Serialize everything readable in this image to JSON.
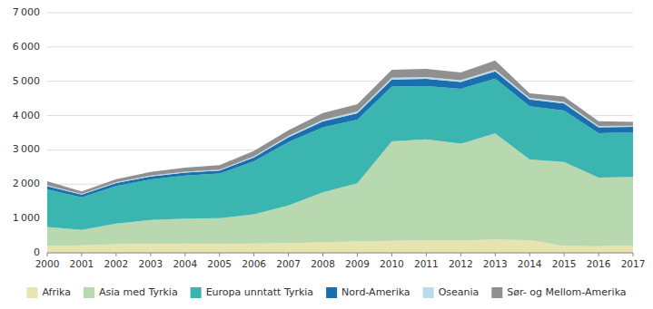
{
  "chart_data": {
    "type": "area",
    "stacked": true,
    "grid": true,
    "legend": "bottom",
    "x": [
      2000,
      2001,
      2002,
      2003,
      2004,
      2005,
      2006,
      2007,
      2008,
      2009,
      2010,
      2011,
      2012,
      2013,
      2014,
      2015,
      2016,
      2017
    ],
    "xlim": [
      2000,
      2017
    ],
    "xticks": [
      2000,
      2001,
      2002,
      2003,
      2004,
      2005,
      2006,
      2007,
      2008,
      2009,
      2010,
      2011,
      2012,
      2013,
      2014,
      2015,
      2016,
      2017
    ],
    "ylim": [
      0,
      7000
    ],
    "yticks": [
      0,
      {
        "value": 1000,
        "label": "1 000"
      },
      {
        "value": 2000,
        "label": "2 000"
      },
      {
        "value": 3000,
        "label": "3 000"
      },
      {
        "value": 4000,
        "label": "4 000"
      },
      {
        "value": 5000,
        "label": "5 000"
      },
      {
        "value": 6000,
        "label": "6 000"
      },
      {
        "value": 7000,
        "label": "7 000"
      }
    ],
    "series": [
      {
        "name": "Afrika",
        "color": "#e8e4b0",
        "values": [
          200,
          220,
          250,
          260,
          270,
          260,
          270,
          280,
          310,
          330,
          350,
          360,
          360,
          380,
          370,
          200,
          190,
          210
        ]
      },
      {
        "name": "Asia med Tyrkia",
        "color": "#b8d9b0",
        "values": [
          550,
          450,
          600,
          700,
          730,
          750,
          850,
          1100,
          1450,
          1700,
          2900,
          2950,
          2820,
          3100,
          2350,
          2450,
          2000,
          2000
        ]
      },
      {
        "name": "Europa unntatt Tyrkia",
        "color": "#3ab5b0",
        "values": [
          1100,
          950,
          1100,
          1180,
          1250,
          1300,
          1550,
          1850,
          1900,
          1850,
          1600,
          1550,
          1600,
          1600,
          1550,
          1500,
          1300,
          1300
        ]
      },
      {
        "name": "Nord-Amerika",
        "color": "#1a6faf",
        "values": [
          90,
          75,
          85,
          85,
          90,
          90,
          110,
          140,
          170,
          190,
          200,
          210,
          200,
          210,
          200,
          200,
          170,
          160
        ]
      },
      {
        "name": "Oseania",
        "color": "#b8dce8",
        "values": [
          25,
          20,
          25,
          25,
          25,
          25,
          30,
          35,
          45,
          50,
          55,
          55,
          55,
          55,
          50,
          45,
          40,
          35
        ]
      },
      {
        "name": "Sør- og Mellom-Amerika",
        "color": "#909090",
        "values": [
          120,
          75,
          85,
          110,
          120,
          130,
          160,
          170,
          200,
          210,
          230,
          240,
          220,
          260,
          130,
          160,
          140,
          110
        ]
      }
    ]
  }
}
